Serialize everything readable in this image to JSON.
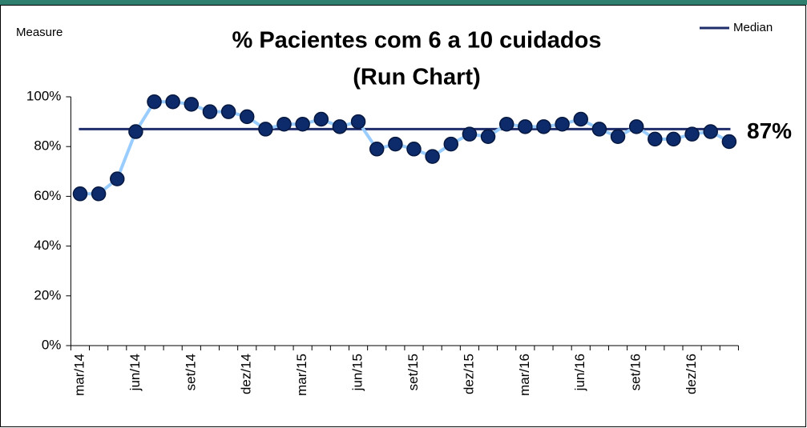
{
  "chart_data": {
    "type": "line",
    "title": "% Pacientes com 6 a 10 cuidados",
    "subtitle": "(Run Chart)",
    "y_label": "Measure",
    "categories": [
      "mar/14",
      null,
      null,
      "jun/14",
      null,
      null,
      "set/14",
      null,
      null,
      "dez/14",
      null,
      null,
      "mar/15",
      null,
      null,
      "jun/15",
      null,
      null,
      "set/15",
      null,
      null,
      "dez/15",
      null,
      null,
      "mar/16",
      null,
      null,
      "jun/16",
      null,
      null,
      "set/16",
      null,
      null,
      "dez/16",
      null,
      null
    ],
    "series": [
      {
        "name": "Measure",
        "color": "#99ccff",
        "marker_color": "#0d2b6b",
        "values": [
          61,
          61,
          67,
          86,
          98,
          98,
          97,
          94,
          94,
          92,
          87,
          89,
          89,
          91,
          88,
          90,
          79,
          81,
          79,
          76,
          81,
          85,
          84,
          89,
          88,
          88,
          89,
          91,
          87,
          84,
          88,
          83,
          83,
          85,
          86,
          82
        ]
      }
    ],
    "median": {
      "name": "Median",
      "value": 87,
      "label": "87%",
      "color": "#1f2d6b"
    },
    "ylim": [
      0,
      100
    ],
    "yticks": [
      {
        "value": 0,
        "label": "0%"
      },
      {
        "value": 20,
        "label": "20%"
      },
      {
        "value": 40,
        "label": "40%"
      },
      {
        "value": 60,
        "label": "60%"
      },
      {
        "value": 80,
        "label": "80%"
      },
      {
        "value": 100,
        "label": "100%"
      }
    ],
    "grid": false
  }
}
